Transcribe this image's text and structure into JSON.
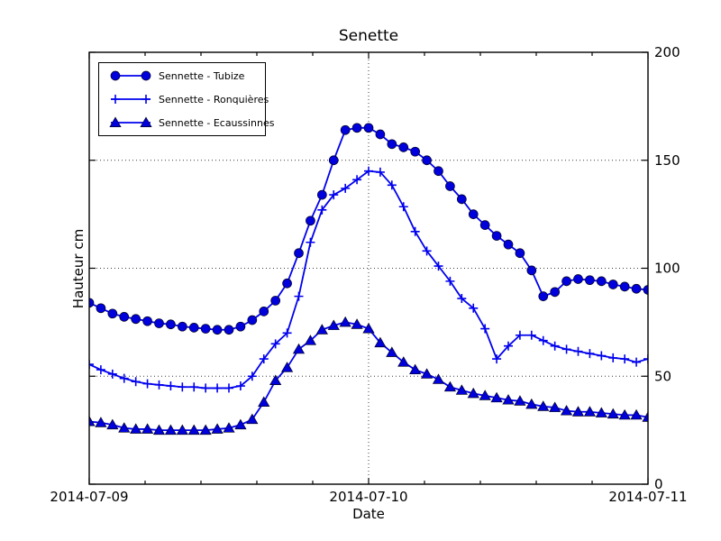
{
  "colors": {
    "series_line": "#0000ee",
    "marker_fill": "#0000dd",
    "marker_edge": "#000022",
    "grid": "#3c3c3c",
    "axis": "#000000",
    "text": "#000000",
    "background": "#ffffff",
    "legend_border": "#000000"
  },
  "chart_data": {
    "type": "line",
    "title": "Senette",
    "xlabel": "Date",
    "ylabel": "Hauteur cm",
    "legend_position": "upper left",
    "grid": "dotted",
    "xlim": [
      0,
      48
    ],
    "ylim": [
      0,
      200
    ],
    "x_unit": "hours since 2014-07-09 00:00",
    "x_tick_labels": [
      "2014-07-09",
      "2014-07-10",
      "2014-07-11"
    ],
    "x_major_ticks_hours": [
      0,
      24,
      48
    ],
    "x_minor_ticks_hours": [
      4.8,
      9.6,
      14.4,
      19.2,
      28.8,
      33.6,
      38.4,
      43.2
    ],
    "x_gridlines_hours": [
      24
    ],
    "y_ticks": [
      0,
      50,
      100,
      150,
      200
    ],
    "y_tick_labels": [
      "0",
      "50",
      "100",
      "150",
      "200"
    ],
    "y_gridlines": [
      50,
      100,
      150
    ],
    "y_tick_label_side": "right",
    "x_hours": [
      0,
      1,
      2,
      3,
      4,
      5,
      6,
      7,
      8,
      9,
      10,
      11,
      12,
      13,
      14,
      15,
      16,
      17,
      18,
      19,
      20,
      21,
      22,
      23,
      24,
      25,
      26,
      27,
      28,
      29,
      30,
      31,
      32,
      33,
      34,
      35,
      36,
      37,
      38,
      39,
      40,
      41,
      42,
      43,
      44,
      45,
      46,
      47,
      48
    ],
    "series": [
      {
        "name": "Sennette - Tubize",
        "slug": "sennette-tubize",
        "marker": "circle",
        "values": [
          84,
          81.5,
          79,
          77.5,
          76.5,
          75.5,
          74.5,
          74,
          73,
          72.5,
          72,
          71.5,
          71.5,
          73,
          76,
          80,
          85,
          93,
          107,
          122,
          134,
          150,
          164,
          165,
          165,
          162,
          157.5,
          156,
          154,
          150,
          145,
          138,
          132,
          125,
          120,
          115,
          111,
          107,
          99,
          87,
          89,
          94,
          95,
          94.5,
          94,
          92.5,
          91.5,
          90.5,
          90
        ]
      },
      {
        "name": "Sennette - Ronquières",
        "slug": "sennette-ronquieres",
        "marker": "plus",
        "values": [
          55.5,
          53,
          51,
          49,
          47.5,
          46.5,
          46,
          45.5,
          45,
          45,
          44.5,
          44.5,
          44.5,
          45.5,
          50,
          58,
          65,
          70,
          87,
          112,
          127,
          134,
          137,
          141,
          145,
          144.5,
          138.5,
          128.5,
          117,
          108,
          101,
          94,
          86,
          81.5,
          72,
          58,
          64,
          69,
          69,
          66.5,
          64,
          62.5,
          61.5,
          60.5,
          59.5,
          58.5,
          58,
          56.5,
          58
        ]
      },
      {
        "name": "Sennette - Ecaussinnes",
        "slug": "sennette-ecaussinnes",
        "marker": "triangle",
        "values": [
          29,
          28.5,
          27.5,
          26,
          25.5,
          25.5,
          25,
          25,
          25,
          25,
          25,
          25.5,
          26,
          27.5,
          30,
          38,
          48,
          54,
          62.5,
          66.5,
          71.5,
          73.5,
          75,
          74,
          72,
          65.5,
          61,
          56.5,
          53,
          51,
          48.5,
          45,
          43.5,
          42,
          41,
          40,
          39,
          38.5,
          37,
          36,
          35.5,
          34,
          33.5,
          33.5,
          33,
          32.5,
          32,
          32,
          31
        ]
      }
    ]
  }
}
